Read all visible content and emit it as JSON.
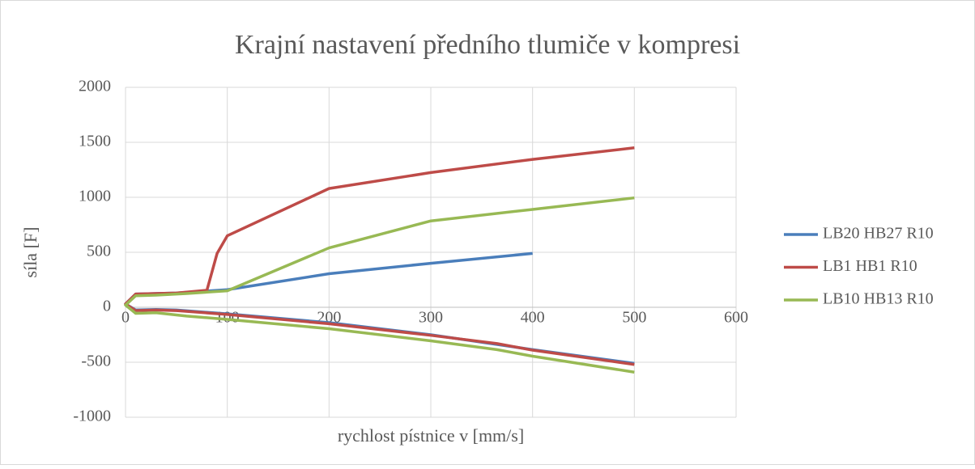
{
  "chart_data": {
    "type": "line",
    "title": "Krajní nastavení předního tlumiče v kompresi",
    "x_label": "rychlost pístnice v [mm/s]",
    "y_label": "síla [F]",
    "xlim": [
      0,
      600
    ],
    "xticks": [
      0,
      100,
      200,
      300,
      400,
      500,
      600
    ],
    "ylim": [
      -1000,
      2000
    ],
    "yticks": [
      -1000,
      -500,
      0,
      500,
      1000,
      1500,
      2000
    ],
    "grid": true,
    "legend": "right",
    "series": [
      {
        "name": "LB20 HB27 R10",
        "color": "#4a7ebb",
        "x": [
          500,
          400,
          300,
          200,
          100,
          50,
          30,
          10,
          0,
          10,
          50,
          100,
          200,
          300,
          400
        ],
        "values": [
          -510,
          -385,
          -250,
          -140,
          -60,
          -25,
          -20,
          -25,
          30,
          120,
          130,
          160,
          305,
          400,
          490
        ]
      },
      {
        "name": "LB1 HB1 R10",
        "color": "#be4b48",
        "x": [
          500,
          400,
          365,
          300,
          200,
          100,
          50,
          30,
          10,
          0,
          10,
          50,
          80,
          90,
          100,
          200,
          300,
          400,
          500
        ],
        "values": [
          -520,
          -390,
          -330,
          -255,
          -150,
          -65,
          -30,
          -25,
          -30,
          30,
          120,
          130,
          155,
          490,
          650,
          1080,
          1225,
          1345,
          1450
        ]
      },
      {
        "name": "LB10 HB13 R10",
        "color": "#98b954",
        "x": [
          500,
          400,
          365,
          300,
          200,
          100,
          60,
          30,
          10,
          0,
          10,
          30,
          60,
          100,
          200,
          300,
          400,
          500
        ],
        "values": [
          -590,
          -445,
          -385,
          -305,
          -195,
          -110,
          -80,
          -50,
          -55,
          20,
          105,
          110,
          125,
          150,
          540,
          785,
          890,
          995
        ]
      }
    ]
  }
}
